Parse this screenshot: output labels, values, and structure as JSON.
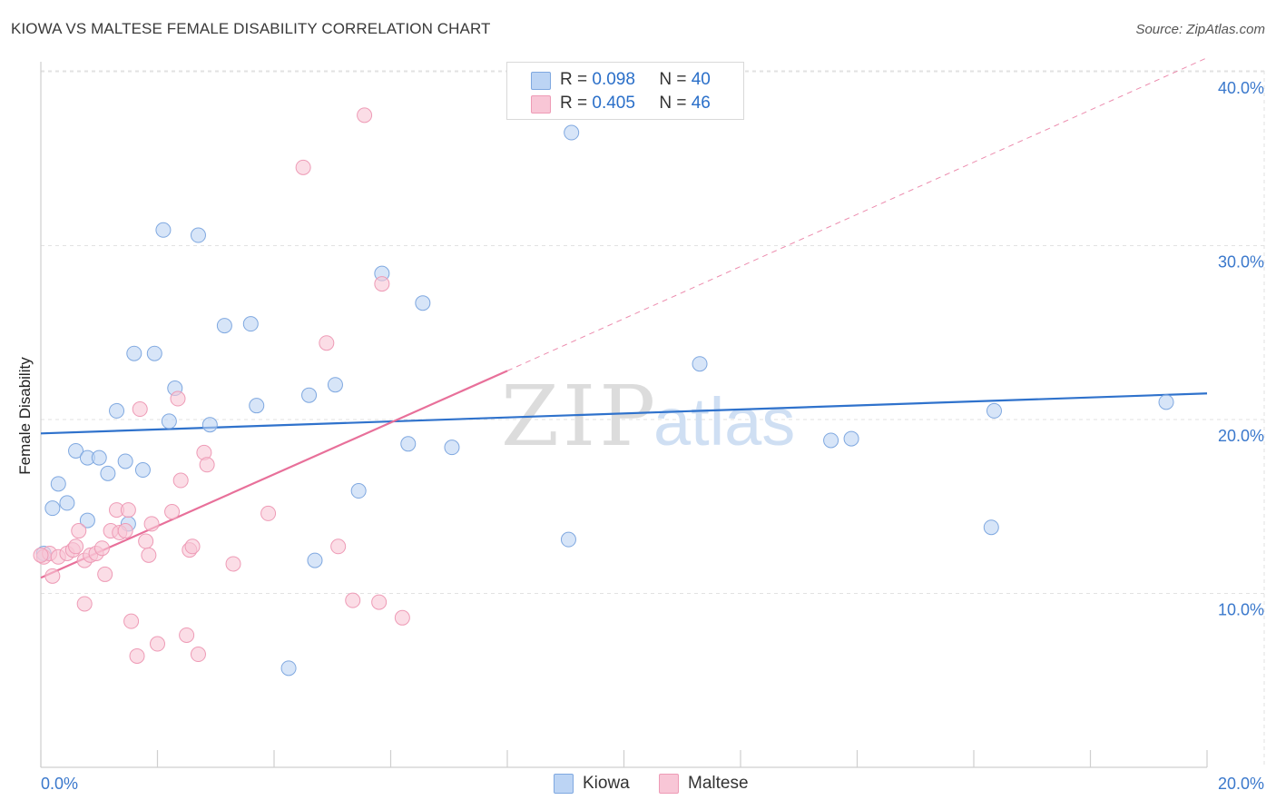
{
  "title": "KIOWA VS MALTESE FEMALE DISABILITY CORRELATION CHART",
  "source": "Source: ZipAtlas.com",
  "watermark": {
    "zip": "ZIP",
    "atlas": "atlas"
  },
  "legend": {
    "kiowa": {
      "r_label": "R =",
      "r_value": "0.098",
      "n_label": "N =",
      "n_value": "40"
    },
    "maltese": {
      "r_label": "R =",
      "r_value": "0.405",
      "n_label": "N =",
      "n_value": "46"
    }
  },
  "colors": {
    "kiowa_fill": "#bcd4f4",
    "kiowa_stroke": "#7fa8e0",
    "kiowa_line": "#2f72cc",
    "maltese_fill": "#f8c6d6",
    "maltese_stroke": "#ee9bb6",
    "maltese_line": "#e8709a",
    "axis_text": "#3a78cc",
    "grid": "#e2e2e2"
  },
  "chart_data": {
    "type": "scatter",
    "title": "KIOWA VS MALTESE FEMALE DISABILITY CORRELATION CHART",
    "xlabel": "",
    "ylabel": "Female Disability",
    "xlim": [
      0,
      20
    ],
    "ylim": [
      0,
      41
    ],
    "x_tick_labels": [
      {
        "value": 0,
        "label": "0.0%"
      },
      {
        "value": 20,
        "label": "20.0%"
      }
    ],
    "y_tick_labels": [
      {
        "value": 10,
        "label": "10.0%"
      },
      {
        "value": 20,
        "label": "20.0%"
      },
      {
        "value": 30,
        "label": "30.0%"
      },
      {
        "value": 40,
        "label": "40.0%"
      }
    ],
    "series": [
      {
        "name": "Kiowa",
        "r": 0.098,
        "n": 40,
        "trend": {
          "x": [
            0,
            20
          ],
          "y": [
            19.2,
            21.5
          ]
        },
        "points": [
          [
            0.05,
            12.3
          ],
          [
            0.2,
            14.9
          ],
          [
            0.3,
            16.3
          ],
          [
            0.45,
            15.2
          ],
          [
            0.6,
            18.2
          ],
          [
            0.8,
            17.8
          ],
          [
            0.8,
            14.2
          ],
          [
            1.0,
            17.8
          ],
          [
            1.15,
            16.9
          ],
          [
            1.3,
            20.5
          ],
          [
            1.45,
            17.6
          ],
          [
            1.5,
            14.0
          ],
          [
            1.6,
            23.8
          ],
          [
            1.75,
            17.1
          ],
          [
            1.95,
            23.8
          ],
          [
            2.1,
            30.9
          ],
          [
            2.2,
            19.9
          ],
          [
            2.3,
            21.8
          ],
          [
            2.7,
            30.6
          ],
          [
            2.9,
            19.7
          ],
          [
            3.15,
            25.4
          ],
          [
            3.6,
            25.5
          ],
          [
            3.7,
            20.8
          ],
          [
            4.25,
            5.7
          ],
          [
            4.6,
            21.4
          ],
          [
            4.7,
            11.9
          ],
          [
            5.05,
            22.0
          ],
          [
            5.45,
            15.9
          ],
          [
            5.85,
            28.4
          ],
          [
            6.3,
            18.6
          ],
          [
            6.55,
            26.7
          ],
          [
            7.05,
            18.4
          ],
          [
            9.05,
            13.1
          ],
          [
            9.1,
            36.5
          ],
          [
            11.3,
            23.2
          ],
          [
            13.55,
            18.8
          ],
          [
            13.9,
            18.9
          ],
          [
            16.3,
            13.8
          ],
          [
            16.35,
            20.5
          ],
          [
            19.3,
            21.0
          ]
        ]
      },
      {
        "name": "Maltese",
        "r": 0.405,
        "n": 46,
        "trend": {
          "x": [
            0,
            8.0
          ],
          "y": [
            10.9,
            22.8
          ]
        },
        "trend_extended": {
          "x": [
            8.0,
            20
          ],
          "y": [
            22.8,
            40.8
          ]
        },
        "points": [
          [
            0.05,
            12.1
          ],
          [
            0.15,
            12.3
          ],
          [
            0.2,
            11.0
          ],
          [
            0.3,
            12.1
          ],
          [
            0.45,
            12.3
          ],
          [
            0.55,
            12.5
          ],
          [
            0.6,
            12.7
          ],
          [
            0.65,
            13.6
          ],
          [
            0.75,
            11.9
          ],
          [
            0.75,
            9.4
          ],
          [
            0.85,
            12.2
          ],
          [
            0.95,
            12.3
          ],
          [
            1.05,
            12.6
          ],
          [
            1.1,
            11.1
          ],
          [
            1.2,
            13.6
          ],
          [
            1.3,
            14.8
          ],
          [
            1.35,
            13.5
          ],
          [
            1.45,
            13.6
          ],
          [
            1.5,
            14.8
          ],
          [
            1.55,
            8.4
          ],
          [
            1.65,
            6.4
          ],
          [
            1.7,
            20.6
          ],
          [
            1.8,
            13.0
          ],
          [
            1.85,
            12.2
          ],
          [
            1.9,
            14.0
          ],
          [
            2.0,
            7.1
          ],
          [
            2.25,
            14.7
          ],
          [
            2.35,
            21.2
          ],
          [
            2.4,
            16.5
          ],
          [
            2.5,
            7.6
          ],
          [
            2.55,
            12.5
          ],
          [
            2.6,
            12.7
          ],
          [
            2.7,
            6.5
          ],
          [
            2.8,
            18.1
          ],
          [
            2.85,
            17.4
          ],
          [
            3.3,
            11.7
          ],
          [
            3.9,
            14.6
          ],
          [
            4.5,
            34.5
          ],
          [
            4.9,
            24.4
          ],
          [
            5.1,
            12.7
          ],
          [
            5.35,
            9.6
          ],
          [
            5.55,
            37.5
          ],
          [
            5.8,
            9.5
          ],
          [
            5.85,
            27.8
          ],
          [
            6.2,
            8.6
          ],
          [
            0.0,
            12.2
          ]
        ]
      }
    ],
    "bottom_legend": [
      "Kiowa",
      "Maltese"
    ],
    "grid": true,
    "legend_position": "top-center"
  }
}
